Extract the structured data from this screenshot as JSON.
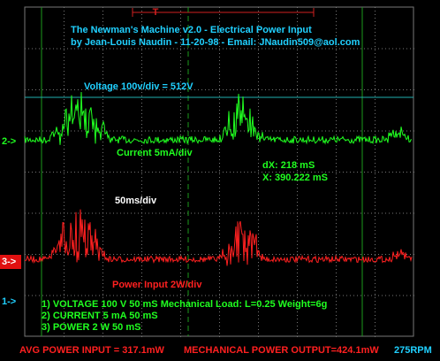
{
  "header": {
    "title": "The Newman's Machine v2.0 - Electrical Power Input",
    "byline": "by Jean-Louis Naudin - 11-20-98 - Email: JNaudin509@aol.com"
  },
  "trace_labels": {
    "voltage": "Voltage 100v/div = 512V",
    "current": "Current 5mA/div",
    "power": "Power Input 2W/div"
  },
  "cursor": {
    "dx": "dX: 218 mS",
    "x": "X: 390.222 mS"
  },
  "timebase": "50ms/div",
  "channel_markers": {
    "ch2": "2->",
    "ch3": "3->",
    "ch1": "1->"
  },
  "trigger_marker": "T",
  "settings": [
    "1) VOLTAGE 100  V 50 mS Mechanical Load: L=0.25 Weight=6g",
    "2) CURRENT 5 mA 50 mS",
    "3) POWER 2  W 50 mS"
  ],
  "footer": {
    "input": "AVG POWER INPUT = 317.1mW",
    "output": "MECHANICAL POWER OUTPUT=424.1mW",
    "rpm": "275RPM"
  }
}
